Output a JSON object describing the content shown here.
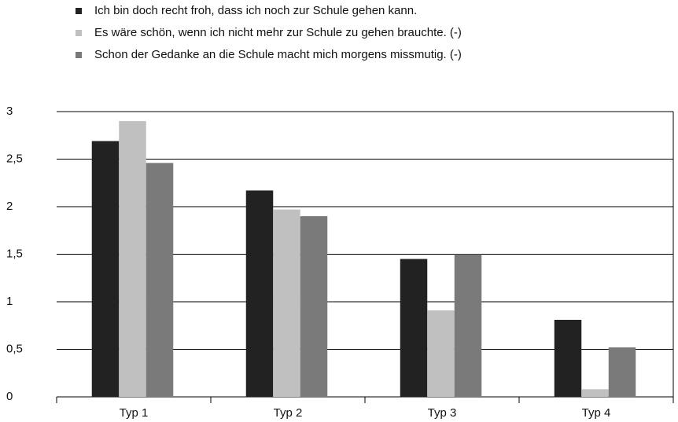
{
  "chart_data": {
    "type": "bar",
    "categories": [
      "Typ 1",
      "Typ 2",
      "Typ 3",
      "Typ 4"
    ],
    "series": [
      {
        "name": "Ich bin doch recht froh, dass ich noch zur Schule gehen kann.",
        "color": "#222222",
        "values": [
          2.69,
          2.17,
          1.45,
          0.81
        ]
      },
      {
        "name": "Es wäre schön, wenn ich nicht mehr zur Schule zu gehen brauchte. (-)",
        "color": "#c0c0c0",
        "values": [
          2.9,
          1.97,
          0.91,
          0.08
        ]
      },
      {
        "name": "Schon der Gedanke an die Schule macht mich morgens missmutig. (-)",
        "color": "#7a7a7a",
        "values": [
          2.46,
          1.9,
          1.5,
          0.52
        ]
      }
    ],
    "ylim": [
      0,
      3
    ],
    "yticks": [
      0,
      {
        "value": 0.5,
        "label": "0,5"
      },
      1,
      {
        "value": 1.5,
        "label": "1,5"
      },
      2,
      {
        "value": 2.5,
        "label": "2,5"
      },
      3
    ],
    "grid": true,
    "legend": "top-left"
  }
}
